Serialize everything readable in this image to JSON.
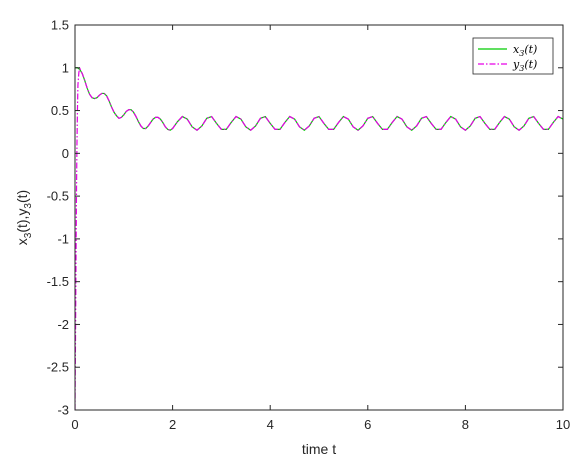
{
  "chart_data": {
    "type": "line",
    "title": "",
    "xlabel": "time t",
    "ylabel_parts": [
      "x",
      "3",
      "(t),y",
      "3",
      "(t)"
    ],
    "xlim": [
      0,
      10
    ],
    "ylim": [
      -3,
      1.5
    ],
    "xticks": [
      0,
      2,
      4,
      6,
      8,
      10
    ],
    "yticks": [
      -3,
      -2.5,
      -2,
      -1.5,
      -1,
      -0.5,
      0,
      0.5,
      1,
      1.5
    ],
    "xtick_labels": [
      "0",
      "2",
      "4",
      "6",
      "8",
      "10"
    ],
    "ytick_labels": [
      "-3",
      "-2.5",
      "-2",
      "-1.5",
      "-1",
      "-0.5",
      "0",
      "0.5",
      "1",
      "1.5"
    ],
    "grid": false,
    "legend_position": "top-right",
    "series": [
      {
        "name": "x3(t)",
        "legend_base": "x",
        "legend_sub": "3",
        "legend_tail": "(t)",
        "color": "#00cc00",
        "style": "solid",
        "x": [
          0,
          0.05,
          0.1,
          0.15,
          0.2,
          0.25,
          0.3,
          0.35,
          0.4,
          0.45,
          0.5,
          0.55,
          0.6,
          0.65,
          0.7,
          0.75,
          0.8,
          0.85,
          0.9,
          0.95,
          1.0,
          1.05,
          1.1,
          1.15,
          1.2,
          1.25,
          1.3,
          1.35,
          1.4,
          1.45,
          1.5,
          1.55,
          1.6,
          1.65,
          1.7,
          1.75,
          1.8,
          1.85,
          1.9,
          1.95,
          2.0,
          2.1,
          2.2,
          2.3,
          2.4,
          2.5,
          2.6,
          2.7,
          2.8,
          2.9,
          3.0,
          3.1,
          3.2,
          3.3,
          3.4,
          3.5,
          3.6,
          3.7,
          3.8,
          3.9,
          4.0,
          4.1,
          4.2,
          4.3,
          4.4,
          4.5,
          4.6,
          4.7,
          4.8,
          4.9,
          5.0,
          5.1,
          5.2,
          5.3,
          5.4,
          5.5,
          5.6,
          5.7,
          5.8,
          5.9,
          6.0,
          6.1,
          6.2,
          6.3,
          6.4,
          6.5,
          6.6,
          6.7,
          6.8,
          6.9,
          7.0,
          7.1,
          7.2,
          7.3,
          7.4,
          7.5,
          7.6,
          7.7,
          7.8,
          7.9,
          8.0,
          8.1,
          8.2,
          8.3,
          8.4,
          8.5,
          8.6,
          8.7,
          8.8,
          8.9,
          9.0,
          9.1,
          9.2,
          9.3,
          9.4,
          9.5,
          9.6,
          9.7,
          9.8,
          9.9,
          10.0
        ],
        "y": [
          1.0,
          1.0,
          0.98,
          0.93,
          0.85,
          0.76,
          0.69,
          0.65,
          0.64,
          0.65,
          0.68,
          0.7,
          0.7,
          0.67,
          0.61,
          0.54,
          0.48,
          0.44,
          0.41,
          0.42,
          0.45,
          0.49,
          0.51,
          0.51,
          0.48,
          0.43,
          0.37,
          0.32,
          0.29,
          0.29,
          0.32,
          0.36,
          0.4,
          0.42,
          0.42,
          0.4,
          0.36,
          0.31,
          0.28,
          0.27,
          0.29,
          0.37,
          0.43,
          0.4,
          0.31,
          0.27,
          0.32,
          0.41,
          0.43,
          0.35,
          0.28,
          0.28,
          0.36,
          0.43,
          0.4,
          0.31,
          0.27,
          0.32,
          0.41,
          0.43,
          0.35,
          0.28,
          0.28,
          0.36,
          0.43,
          0.4,
          0.31,
          0.27,
          0.32,
          0.41,
          0.43,
          0.35,
          0.28,
          0.28,
          0.36,
          0.43,
          0.4,
          0.31,
          0.27,
          0.32,
          0.41,
          0.43,
          0.35,
          0.28,
          0.28,
          0.36,
          0.43,
          0.4,
          0.31,
          0.27,
          0.32,
          0.41,
          0.43,
          0.35,
          0.28,
          0.28,
          0.36,
          0.43,
          0.4,
          0.31,
          0.27,
          0.32,
          0.41,
          0.43,
          0.35,
          0.28,
          0.28,
          0.36,
          0.43,
          0.4,
          0.31,
          0.27,
          0.32,
          0.41,
          0.43,
          0.35,
          0.28,
          0.28,
          0.36,
          0.43,
          0.4
        ]
      },
      {
        "name": "y3(t)",
        "legend_base": "y",
        "legend_sub": "3",
        "legend_tail": "(t)",
        "color": "#e600e6",
        "style": "dashdot",
        "x": [
          0,
          0.01,
          0.02,
          0.03,
          0.04,
          0.05,
          0.06,
          0.08,
          0.1,
          0.15,
          0.2,
          0.25,
          0.3,
          0.35,
          0.4,
          0.45,
          0.5,
          0.55,
          0.6,
          0.65,
          0.7,
          0.75,
          0.8,
          0.85,
          0.9,
          0.95,
          1.0,
          1.05,
          1.1,
          1.15,
          1.2,
          1.25,
          1.3,
          1.35,
          1.4,
          1.45,
          1.5,
          1.55,
          1.6,
          1.65,
          1.7,
          1.75,
          1.8,
          1.85,
          1.9,
          1.95,
          2.0,
          2.1,
          2.2,
          2.3,
          2.4,
          2.5,
          2.6,
          2.7,
          2.8,
          2.9,
          3.0,
          3.1,
          3.2,
          3.3,
          3.4,
          3.5,
          3.6,
          3.7,
          3.8,
          3.9,
          4.0,
          4.1,
          4.2,
          4.3,
          4.4,
          4.5,
          4.6,
          4.7,
          4.8,
          4.9,
          5.0,
          5.1,
          5.2,
          5.3,
          5.4,
          5.5,
          5.6,
          5.7,
          5.8,
          5.9,
          6.0,
          6.1,
          6.2,
          6.3,
          6.4,
          6.5,
          6.6,
          6.7,
          6.8,
          6.9,
          7.0,
          7.1,
          7.2,
          7.3,
          7.4,
          7.5,
          7.6,
          7.7,
          7.8,
          7.9,
          8.0,
          8.1,
          8.2,
          8.3,
          8.4,
          8.5,
          8.6,
          8.7,
          8.8,
          8.9,
          9.0,
          9.1,
          9.2,
          9.3,
          9.4,
          9.5,
          9.6,
          9.7,
          9.8,
          9.9,
          10.0
        ],
        "y": [
          -3.0,
          -2.2,
          -1.3,
          -0.5,
          0.1,
          0.5,
          0.8,
          0.95,
          0.99,
          0.93,
          0.85,
          0.76,
          0.69,
          0.65,
          0.64,
          0.65,
          0.68,
          0.7,
          0.7,
          0.67,
          0.61,
          0.54,
          0.48,
          0.44,
          0.41,
          0.42,
          0.45,
          0.49,
          0.51,
          0.51,
          0.48,
          0.43,
          0.37,
          0.32,
          0.29,
          0.29,
          0.32,
          0.36,
          0.4,
          0.42,
          0.42,
          0.4,
          0.36,
          0.31,
          0.28,
          0.27,
          0.29,
          0.37,
          0.43,
          0.4,
          0.31,
          0.27,
          0.32,
          0.41,
          0.43,
          0.35,
          0.28,
          0.28,
          0.36,
          0.43,
          0.4,
          0.31,
          0.27,
          0.32,
          0.41,
          0.43,
          0.35,
          0.28,
          0.28,
          0.36,
          0.43,
          0.4,
          0.31,
          0.27,
          0.32,
          0.41,
          0.43,
          0.35,
          0.28,
          0.28,
          0.36,
          0.43,
          0.4,
          0.31,
          0.27,
          0.32,
          0.41,
          0.43,
          0.35,
          0.28,
          0.28,
          0.36,
          0.43,
          0.4,
          0.31,
          0.27,
          0.32,
          0.41,
          0.43,
          0.35,
          0.28,
          0.28,
          0.36,
          0.43,
          0.4,
          0.31,
          0.27,
          0.32,
          0.41,
          0.43,
          0.35,
          0.28,
          0.28,
          0.36,
          0.43,
          0.4,
          0.31,
          0.27,
          0.32,
          0.41,
          0.43,
          0.35,
          0.28,
          0.28,
          0.36,
          0.43,
          0.4
        ]
      }
    ]
  }
}
